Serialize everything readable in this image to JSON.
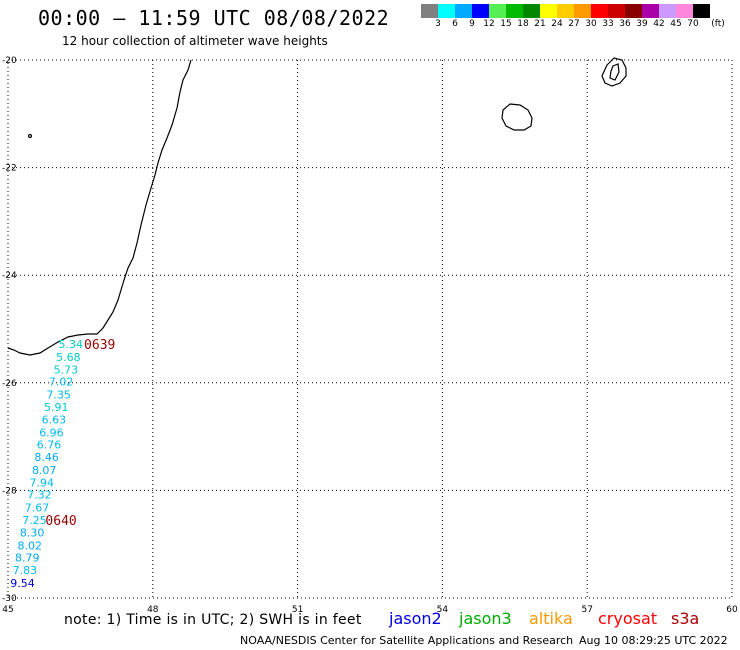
{
  "title": "00:00 – 11:59 UTC 08/08/2022",
  "subtitle": "12 hour collection of altimeter wave heights",
  "legend": {
    "unit": "(ft)",
    "levels": [
      "3",
      "6",
      "9",
      "12",
      "15",
      "18",
      "21",
      "24",
      "27",
      "30",
      "33",
      "36",
      "39",
      "42",
      "45",
      "70"
    ],
    "colors": [
      "#808080",
      "#00ffff",
      "#00aaff",
      "#0000ff",
      "#55ee55",
      "#00bb00",
      "#008800",
      "#ffff00",
      "#ffcc00",
      "#ff9900",
      "#ff0000",
      "#cc0000",
      "#880000",
      "#aa00aa",
      "#cc99ff",
      "#ff88dd",
      "#000000"
    ]
  },
  "axes": {
    "lon_labels": [
      "45",
      "48",
      "51",
      "54",
      "57",
      "60"
    ],
    "lat_labels": [
      "-20",
      "-22",
      "-24",
      "-26",
      "-28",
      "-30"
    ],
    "lon_range": [
      45,
      60
    ],
    "lat_range": [
      -30,
      -20
    ]
  },
  "passes": [
    {
      "label": "0639",
      "lon": 46.9,
      "lat": -25.28,
      "color": "#990000"
    },
    {
      "label": "0640",
      "lon": 46.1,
      "lat": -28.55,
      "color": "#990000"
    }
  ],
  "wave_heights": [
    {
      "value": "5.34",
      "lon": 46.3,
      "lat": -25.28,
      "color": "#00cccc"
    },
    {
      "value": "5.68",
      "lon": 46.25,
      "lat": -25.52,
      "color": "#00cccc"
    },
    {
      "value": "5.73",
      "lon": 46.2,
      "lat": -25.75,
      "color": "#00cccc"
    },
    {
      "value": "7.02",
      "lon": 46.1,
      "lat": -25.98,
      "color": "#00bbee"
    },
    {
      "value": "7.35",
      "lon": 46.05,
      "lat": -26.22,
      "color": "#00bbee"
    },
    {
      "value": "5.91",
      "lon": 46.0,
      "lat": -26.45,
      "color": "#00cccc"
    },
    {
      "value": "6.63",
      "lon": 45.95,
      "lat": -26.68,
      "color": "#00bbee"
    },
    {
      "value": "6.96",
      "lon": 45.9,
      "lat": -26.92,
      "color": "#00bbee"
    },
    {
      "value": "6.76",
      "lon": 45.85,
      "lat": -27.15,
      "color": "#00bbee"
    },
    {
      "value": "8.46",
      "lon": 45.8,
      "lat": -27.38,
      "color": "#00aaff"
    },
    {
      "value": "8.07",
      "lon": 45.75,
      "lat": -27.62,
      "color": "#00aaff"
    },
    {
      "value": "7.94",
      "lon": 45.7,
      "lat": -27.85,
      "color": "#00bbee"
    },
    {
      "value": "7.32",
      "lon": 45.65,
      "lat": -28.08,
      "color": "#00bbee"
    },
    {
      "value": "7.67",
      "lon": 45.6,
      "lat": -28.32,
      "color": "#00bbee"
    },
    {
      "value": "7.25",
      "lon": 45.55,
      "lat": -28.55,
      "color": "#00bbee"
    },
    {
      "value": "8.30",
      "lon": 45.5,
      "lat": -28.78,
      "color": "#00aaff"
    },
    {
      "value": "8.02",
      "lon": 45.45,
      "lat": -29.02,
      "color": "#00aaff"
    },
    {
      "value": "8.79",
      "lon": 45.4,
      "lat": -29.25,
      "color": "#00aaff"
    },
    {
      "value": "7.83",
      "lon": 45.35,
      "lat": -29.48,
      "color": "#00bbee"
    },
    {
      "value": "9.54",
      "lon": 45.3,
      "lat": -29.72,
      "color": "#0000dd"
    }
  ],
  "note": "note: 1) Time is in UTC; 2) SWH is in feet",
  "satellites": [
    {
      "name": "jason2",
      "color": "#0000dd"
    },
    {
      "name": "jason3",
      "color": "#00aa00"
    },
    {
      "name": "altika",
      "color": "#ff9900"
    },
    {
      "name": "cryosat",
      "color": "#ff0000"
    },
    {
      "name": "s3a",
      "color": "#aa0000"
    }
  ],
  "credit": "NOAA/NESDIS Center for Satellite Applications and Research",
  "timestamp": "Aug 10 08:29:25 UTC 2022"
}
